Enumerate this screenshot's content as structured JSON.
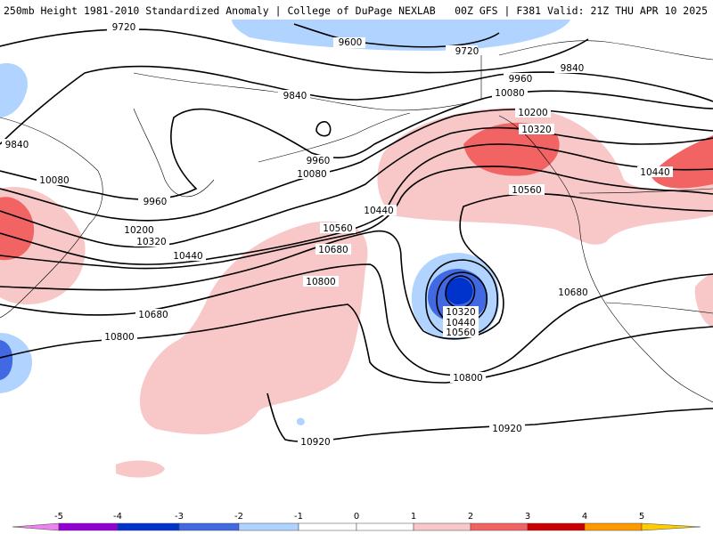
{
  "header": {
    "title_left": "250mb Height 1981-2010 Standardized Anomaly | College of DuPage NEXLAB",
    "title_right": "00Z GFS | F381 Valid: 21Z THU APR 10 2025"
  },
  "map": {
    "contour_labels": [
      {
        "id": "9720-a",
        "text": "9720"
      },
      {
        "id": "9720-b",
        "text": "9720"
      },
      {
        "id": "9600",
        "text": "9600"
      },
      {
        "id": "9840-a",
        "text": "9840"
      },
      {
        "id": "9840-b",
        "text": "9840"
      },
      {
        "id": "9840-c",
        "text": "9840"
      },
      {
        "id": "9960-a",
        "text": "9960"
      },
      {
        "id": "9960-b",
        "text": "9960"
      },
      {
        "id": "9960-c",
        "text": "9960"
      },
      {
        "id": "10080-a",
        "text": "10080"
      },
      {
        "id": "10080-b",
        "text": "10080"
      },
      {
        "id": "10080-c",
        "text": "10080"
      },
      {
        "id": "10200-a",
        "text": "10200"
      },
      {
        "id": "10200-b",
        "text": "10200"
      },
      {
        "id": "10320-a",
        "text": "10320"
      },
      {
        "id": "10320-b",
        "text": "10320"
      },
      {
        "id": "10320-c",
        "text": "10320"
      },
      {
        "id": "10440-a",
        "text": "10440"
      },
      {
        "id": "10440-b",
        "text": "10440"
      },
      {
        "id": "10440-c",
        "text": "10440"
      },
      {
        "id": "10440-d",
        "text": "10440"
      },
      {
        "id": "10560-a",
        "text": "10560"
      },
      {
        "id": "10560-b",
        "text": "10560"
      },
      {
        "id": "10560-c",
        "text": "10560"
      },
      {
        "id": "10680-a",
        "text": "10680"
      },
      {
        "id": "10680-b",
        "text": "10680"
      },
      {
        "id": "10680-c",
        "text": "10680"
      },
      {
        "id": "10800-a",
        "text": "10800"
      },
      {
        "id": "10800-b",
        "text": "10800"
      },
      {
        "id": "10800-c",
        "text": "10800"
      },
      {
        "id": "10920-a",
        "text": "10920"
      },
      {
        "id": "10920-b",
        "text": "10920"
      }
    ]
  },
  "colorbar": {
    "ticks": [
      "-5",
      "-4",
      "-3",
      "-2",
      "-1",
      "0",
      "1",
      "2",
      "3",
      "4",
      "5"
    ],
    "segments": [
      {
        "color": "#ee82ee"
      },
      {
        "color": "#9400d3"
      },
      {
        "color": "#0033cc"
      },
      {
        "color": "#4169e1"
      },
      {
        "color": "#b0d4ff"
      },
      {
        "color": "#ffffff"
      },
      {
        "color": "#ffffff"
      },
      {
        "color": "#f8c8c8"
      },
      {
        "color": "#f26464"
      },
      {
        "color": "#cc0000"
      },
      {
        "color": "#ff9900"
      },
      {
        "color": "#ffcc00"
      }
    ]
  }
}
